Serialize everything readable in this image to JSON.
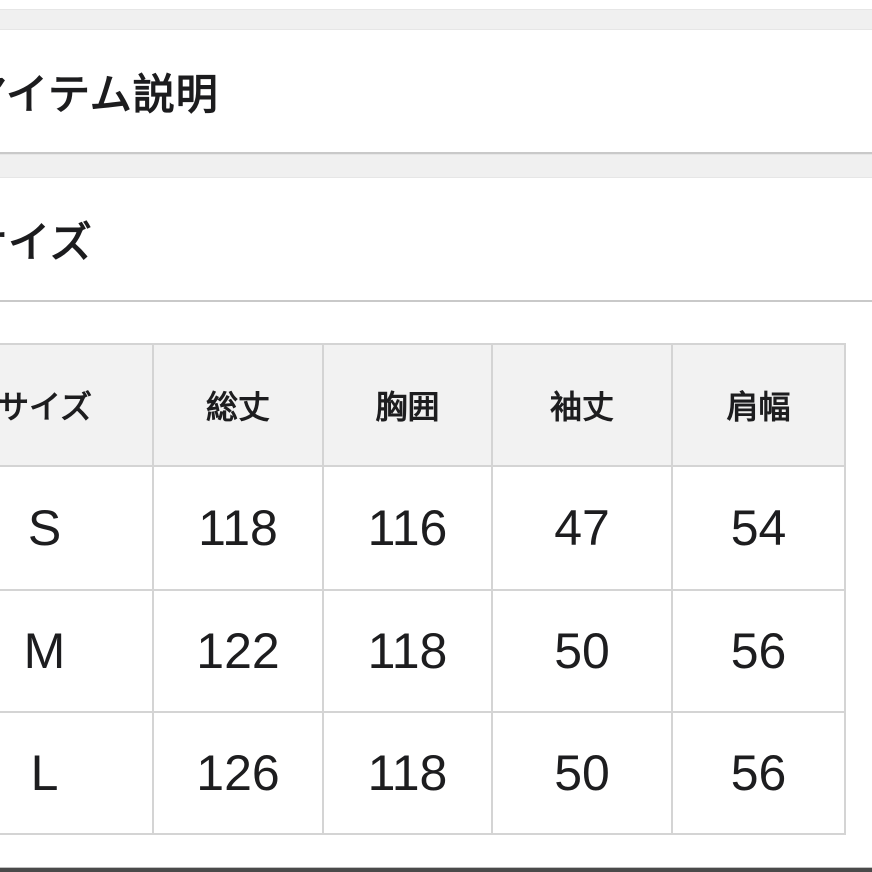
{
  "sections": {
    "item_description_title": "アイテム説明",
    "size_title": "サイズ"
  },
  "size_table": {
    "headers": [
      "サイズ",
      "総丈",
      "胸囲",
      "袖丈",
      "肩幅"
    ],
    "rows": [
      [
        "S",
        "118",
        "116",
        "47",
        "54"
      ],
      [
        "M",
        "122",
        "118",
        "50",
        "56"
      ],
      [
        "L",
        "126",
        "118",
        "50",
        "56"
      ]
    ]
  },
  "colors": {
    "page_gap_background": "#f0f0f0",
    "card_background": "#ffffff",
    "header_cell_background": "#f2f2f2",
    "table_border": "#d4d4d4",
    "section_divider": "#c9c9c9",
    "text": "#1d1d1f",
    "footer_bar": "#4a4a4a"
  }
}
